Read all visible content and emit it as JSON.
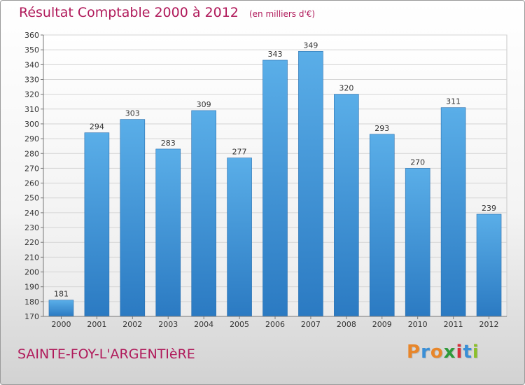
{
  "chart_data": {
    "type": "bar",
    "title": "Résultat Comptable 2000 à 2012",
    "unit_note": "(en milliers d'€)",
    "categories": [
      "2000",
      "2001",
      "2002",
      "2003",
      "2004",
      "2005",
      "2006",
      "2007",
      "2008",
      "2009",
      "2010",
      "2011",
      "2012"
    ],
    "values": [
      181,
      294,
      303,
      283,
      309,
      277,
      343,
      349,
      320,
      293,
      270,
      311,
      239
    ],
    "ylim": [
      170,
      360
    ],
    "ytick_step": 10,
    "grid": true,
    "xlabel": "",
    "ylabel": ""
  },
  "location": "SAINTE-FOY-L'ARGENTIèRE",
  "brand": {
    "letters": [
      "P",
      "r",
      "o",
      "x",
      "i",
      "t",
      "i"
    ],
    "colors": [
      "#e8862a",
      "#3a8fd6",
      "#e8862a",
      "#2e9a3a",
      "#d6303a",
      "#3a8fd6",
      "#8bbf2a"
    ]
  },
  "colors": {
    "bar_top": "#5aaee8",
    "bar_bottom": "#2b7ac2",
    "accent": "#b0195a"
  }
}
